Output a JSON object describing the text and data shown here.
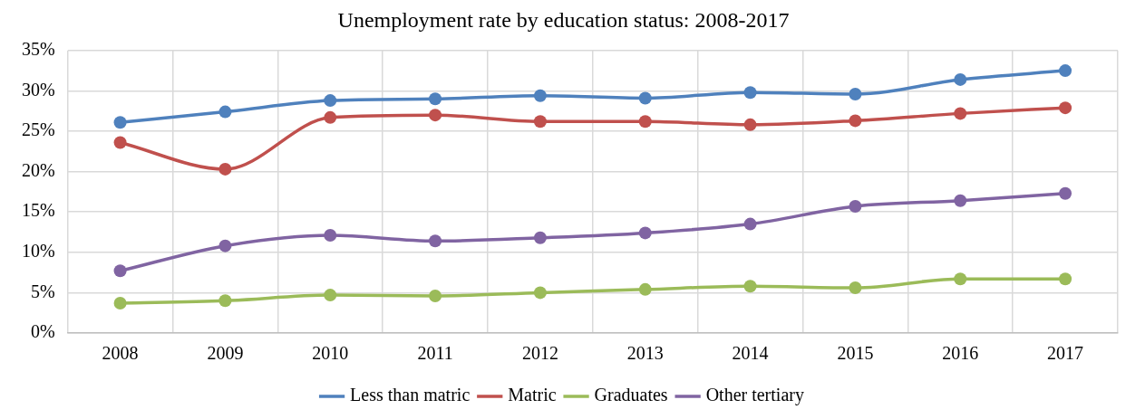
{
  "chart_data": {
    "type": "line",
    "title": "Unemployment rate by education status: 2008-2017",
    "categories": [
      "2008",
      "2009",
      "2010",
      "2011",
      "2012",
      "2013",
      "2014",
      "2015",
      "2016",
      "2017"
    ],
    "series": [
      {
        "name": "Less than matric",
        "color": "#4f81bd",
        "values": [
          26.1,
          27.4,
          28.8,
          29.0,
          29.4,
          29.1,
          29.8,
          29.6,
          31.4,
          32.5
        ]
      },
      {
        "name": "Matric",
        "color": "#c0504d",
        "values": [
          23.6,
          20.3,
          26.7,
          27.0,
          26.2,
          26.2,
          25.8,
          26.3,
          27.2,
          27.9
        ]
      },
      {
        "name": "Graduates",
        "color": "#9bbb59",
        "values": [
          3.7,
          4.0,
          4.7,
          4.6,
          5.0,
          5.4,
          5.8,
          5.6,
          6.7,
          6.7
        ]
      },
      {
        "name": "Other tertiary",
        "color": "#8064a2",
        "values": [
          7.7,
          10.8,
          12.1,
          11.4,
          11.8,
          12.4,
          13.5,
          15.7,
          16.4,
          17.3
        ]
      }
    ],
    "ylim": [
      0,
      35
    ],
    "yticks": [
      {
        "value": 0,
        "label": "0%"
      },
      {
        "value": 5,
        "label": "5%"
      },
      {
        "value": 10,
        "label": "10%"
      },
      {
        "value": 15,
        "label": "15%"
      },
      {
        "value": 20,
        "label": "20%"
      },
      {
        "value": 25,
        "label": "25%"
      },
      {
        "value": 30,
        "label": "30%"
      },
      {
        "value": 35,
        "label": "35%"
      }
    ],
    "grid": true,
    "legend": "bottom",
    "marker": "circle",
    "line_style": "solid"
  }
}
